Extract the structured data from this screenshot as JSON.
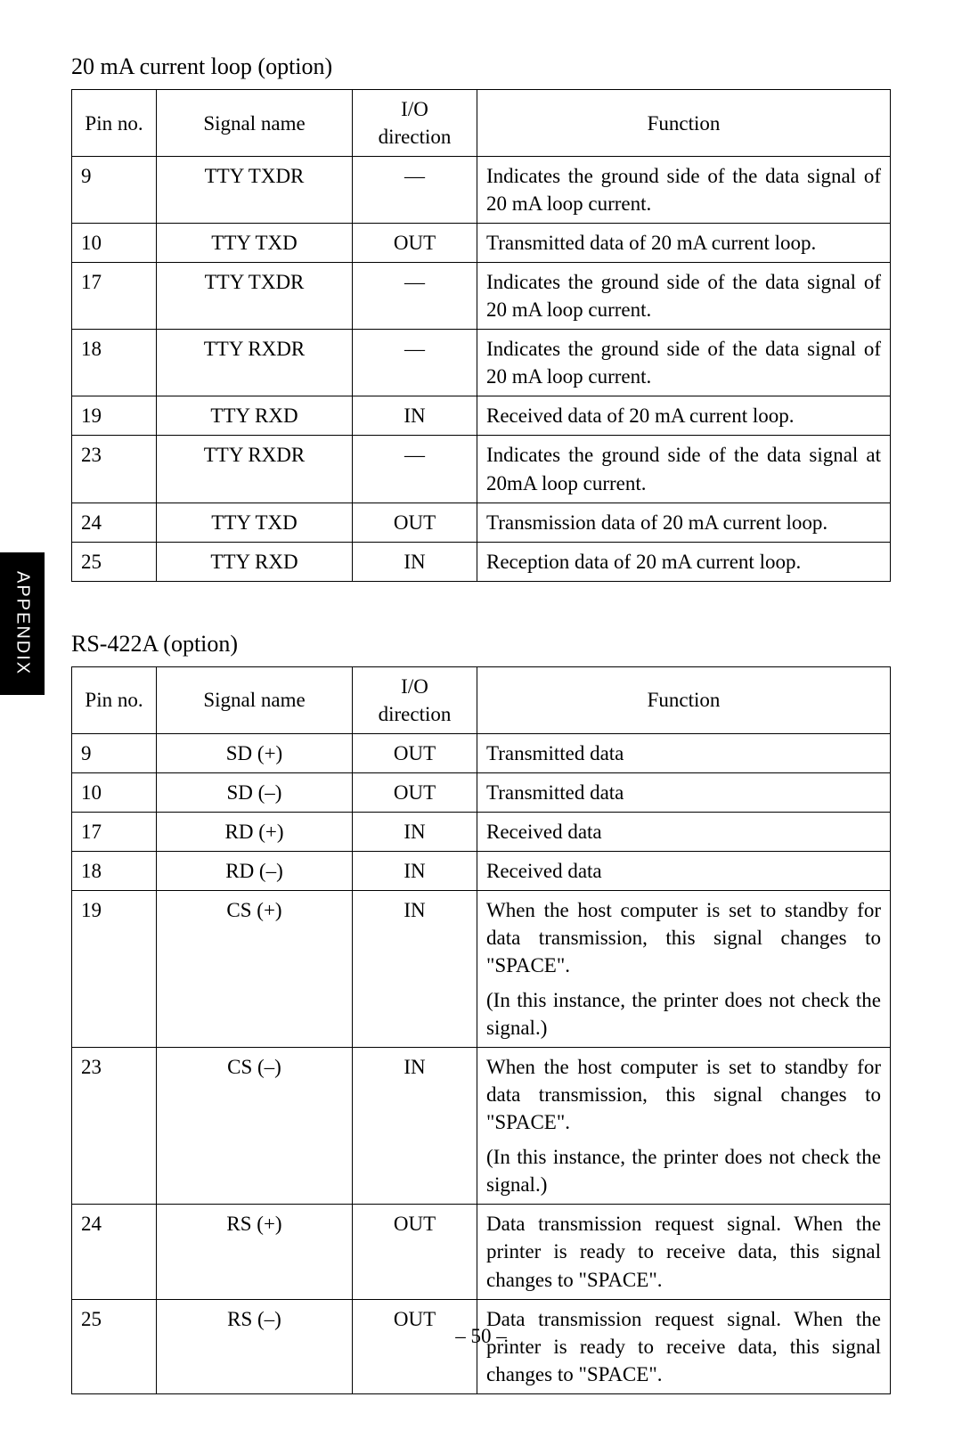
{
  "sideTab": "APPENDIX",
  "pageNumber": "– 50 –",
  "table1": {
    "title": "20 mA current loop (option)",
    "columns": [
      "Pin no.",
      "Signal name",
      "I/O direction",
      "Function"
    ],
    "rows": [
      {
        "pin": "9",
        "signal": "TTY TXDR",
        "io": "—",
        "func": [
          "Indicates the ground side of the data signal of 20 mA loop current."
        ]
      },
      {
        "pin": "10",
        "signal": "TTY TXD",
        "io": "OUT",
        "func": [
          "Transmitted data of 20 mA current loop."
        ]
      },
      {
        "pin": "17",
        "signal": "TTY TXDR",
        "io": "—",
        "func": [
          "Indicates the ground side of the data signal of 20 mA loop current."
        ]
      },
      {
        "pin": "18",
        "signal": "TTY RXDR",
        "io": "—",
        "func": [
          "Indicates the ground side of the data signal of 20 mA loop current."
        ]
      },
      {
        "pin": "19",
        "signal": "TTY RXD",
        "io": "IN",
        "func": [
          "Received data of 20 mA current loop."
        ]
      },
      {
        "pin": "23",
        "signal": "TTY RXDR",
        "io": "—",
        "func": [
          "Indicates the ground side of the data signal at 20mA loop current."
        ]
      },
      {
        "pin": "24",
        "signal": "TTY TXD",
        "io": "OUT",
        "func": [
          "Transmission data of 20 mA current loop."
        ]
      },
      {
        "pin": "25",
        "signal": "TTY RXD",
        "io": "IN",
        "func": [
          "Reception data of 20 mA current loop."
        ]
      }
    ]
  },
  "table2": {
    "title": "RS-422A (option)",
    "columns": [
      "Pin no.",
      "Signal name",
      "I/O direction",
      "Function"
    ],
    "rows": [
      {
        "pin": "9",
        "signal": "SD (+)",
        "io": "OUT",
        "func": [
          "Transmitted data"
        ]
      },
      {
        "pin": "10",
        "signal": "SD (–)",
        "io": "OUT",
        "func": [
          "Transmitted data"
        ]
      },
      {
        "pin": "17",
        "signal": "RD (+)",
        "io": "IN",
        "func": [
          "Received data"
        ]
      },
      {
        "pin": "18",
        "signal": "RD (–)",
        "io": "IN",
        "func": [
          "Received data"
        ]
      },
      {
        "pin": "19",
        "signal": "CS (+)",
        "io": "IN",
        "func": [
          "When the host computer is set to standby for data transmission, this signal changes to \"SPACE\".",
          "(In this instance, the printer does not check the signal.)"
        ]
      },
      {
        "pin": "23",
        "signal": "CS (–)",
        "io": "IN",
        "func": [
          "When the host computer is set to standby for data transmission, this signal changes to \"SPACE\".",
          "(In this instance, the printer does not check the signal.)"
        ]
      },
      {
        "pin": "24",
        "signal": "RS (+)",
        "io": "OUT",
        "func": [
          "Data transmission request signal. When the printer is ready to receive data, this signal changes to \"SPACE\"."
        ]
      },
      {
        "pin": "25",
        "signal": "RS (–)",
        "io": "OUT",
        "func": [
          "Data transmission request signal. When the printer is ready to receive data, this signal changes to \"SPACE\"."
        ]
      }
    ]
  }
}
